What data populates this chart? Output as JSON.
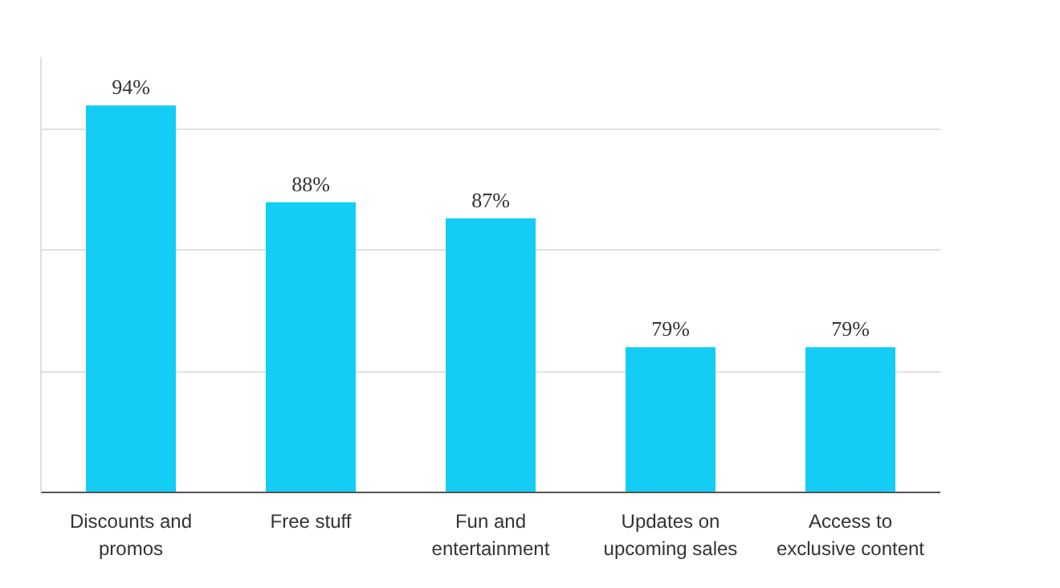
{
  "chart_data": {
    "type": "bar",
    "categories": [
      "Discounts and\npromos",
      "Free stuff",
      "Fun and\nentertainment",
      "Updates on\nupcoming sales",
      "Access to\nexclusive content"
    ],
    "values": [
      94,
      88,
      87,
      79,
      79
    ],
    "color": "#14cdf4",
    "ylim": [
      70,
      97
    ],
    "yticks": [
      {
        "value": 77.5,
        "label": null
      },
      {
        "value": 85,
        "label": null
      },
      {
        "value": 92.5,
        "label": null
      }
    ],
    "tick_labels": "x",
    "grid": "y",
    "value_labels": [
      "94%",
      "88%",
      "87%",
      "79%",
      "79%"
    ]
  }
}
